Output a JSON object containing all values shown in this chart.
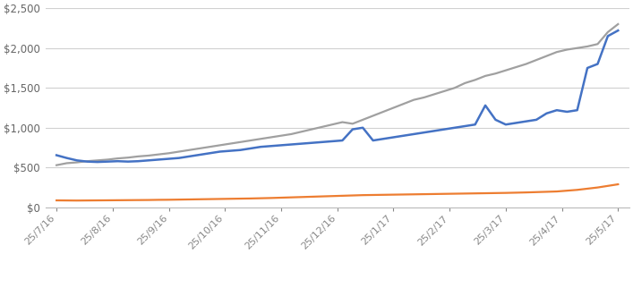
{
  "x_labels": [
    "25/7/16",
    "25/8/16",
    "25/9/16",
    "25/10/16",
    "25/11/16",
    "25/12/16",
    "25/1/17",
    "25/2/17",
    "25/3/17",
    "25/4/17",
    "25/5/17"
  ],
  "bitcoin_market_price": [
    655,
    620,
    590,
    575,
    570,
    575,
    580,
    575,
    580,
    590,
    600,
    610,
    620,
    640,
    660,
    680,
    700,
    710,
    720,
    740,
    760,
    770,
    780,
    790,
    800,
    810,
    820,
    830,
    840,
    980,
    1000,
    840,
    860,
    880,
    900,
    920,
    940,
    960,
    980,
    1000,
    1020,
    1040,
    1280,
    1100,
    1040,
    1060,
    1080,
    1100,
    1180,
    1220,
    1200,
    1220,
    1750,
    1800,
    2150,
    2220
  ],
  "shut_down_price": [
    88,
    87,
    86,
    87,
    88,
    89,
    90,
    91,
    92,
    93,
    95,
    96,
    98,
    100,
    102,
    104,
    106,
    108,
    110,
    112,
    115,
    118,
    122,
    126,
    130,
    134,
    138,
    142,
    146,
    150,
    154,
    156,
    158,
    160,
    162,
    164,
    166,
    168,
    170,
    172,
    174,
    176,
    178,
    180,
    182,
    185,
    188,
    192,
    196,
    200,
    210,
    220,
    235,
    250,
    270,
    290
  ],
  "equilibrium_price": [
    530,
    555,
    565,
    580,
    590,
    600,
    615,
    625,
    640,
    650,
    665,
    680,
    700,
    720,
    740,
    760,
    780,
    800,
    820,
    840,
    860,
    880,
    900,
    920,
    950,
    980,
    1010,
    1040,
    1070,
    1050,
    1100,
    1150,
    1200,
    1250,
    1300,
    1350,
    1380,
    1420,
    1460,
    1500,
    1560,
    1600,
    1650,
    1680,
    1720,
    1760,
    1800,
    1850,
    1900,
    1950,
    1980,
    2000,
    2020,
    2050,
    2200,
    2300
  ],
  "bitcoin_color": "#4472C4",
  "shutdown_color": "#ED7D31",
  "equilibrium_color": "#A0A0A0",
  "background_color": "#FFFFFF",
  "ylim": [
    0,
    2500
  ],
  "yticks": [
    0,
    500,
    1000,
    1500,
    2000,
    2500
  ],
  "grid_color": "#D0D0D0"
}
